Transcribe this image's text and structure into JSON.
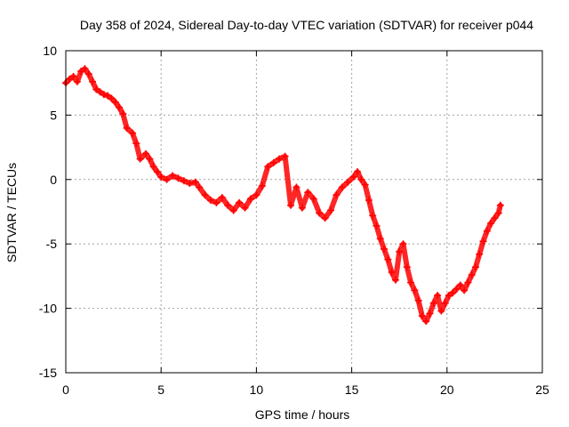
{
  "chart_data": {
    "type": "scatter",
    "title": "Day 358 of 2024, Sidereal Day-to-day VTEC variation (SDTVAR) for receiver p044",
    "xlabel": "GPS time / hours",
    "ylabel": "SDTVAR / TECUs",
    "xlim": [
      0,
      25
    ],
    "ylim": [
      -15,
      10
    ],
    "xticks": [
      0,
      5,
      10,
      15,
      20,
      25
    ],
    "yticks": [
      -15,
      -10,
      -5,
      0,
      5,
      10
    ],
    "grid": true,
    "marker": "+",
    "color": "#ff0000",
    "series": [
      {
        "name": "p044",
        "x": [
          0.0,
          0.2,
          0.4,
          0.6,
          0.8,
          1.0,
          1.2,
          1.4,
          1.6,
          1.8,
          2.0,
          2.2,
          2.4,
          2.6,
          2.8,
          3.0,
          3.2,
          3.5,
          3.7,
          3.9,
          4.2,
          4.4,
          4.6,
          4.8,
          5.0,
          5.3,
          5.6,
          5.9,
          6.2,
          6.5,
          6.8,
          7.0,
          7.3,
          7.6,
          7.9,
          8.2,
          8.5,
          8.8,
          9.1,
          9.4,
          9.7,
          10.0,
          10.3,
          10.6,
          10.9,
          11.2,
          11.5,
          11.8,
          12.1,
          12.4,
          12.7,
          13.0,
          13.3,
          13.6,
          13.9,
          14.2,
          14.5,
          14.8,
          15.1,
          15.3,
          15.5,
          15.7,
          15.9,
          16.1,
          16.3,
          16.5,
          16.7,
          16.9,
          17.1,
          17.3,
          17.5,
          17.7,
          17.9,
          18.1,
          18.3,
          18.5,
          18.7,
          18.9,
          19.1,
          19.3,
          19.5,
          19.7,
          19.9,
          20.1,
          20.3,
          20.5,
          20.7,
          20.9,
          21.1,
          21.3,
          21.5,
          21.7,
          21.9,
          22.1,
          22.3,
          22.5,
          22.7,
          22.8
        ],
        "y": [
          7.5,
          7.8,
          8.0,
          7.6,
          8.4,
          8.6,
          8.2,
          7.6,
          7.0,
          6.8,
          6.6,
          6.5,
          6.3,
          6.0,
          5.6,
          5.1,
          4.0,
          3.6,
          2.8,
          1.6,
          2.0,
          1.6,
          1.0,
          0.6,
          0.2,
          0.0,
          0.3,
          0.1,
          -0.1,
          -0.3,
          -0.2,
          -0.6,
          -1.2,
          -1.6,
          -1.8,
          -1.4,
          -2.0,
          -2.4,
          -1.8,
          -2.2,
          -1.5,
          -1.2,
          -0.5,
          1.0,
          1.3,
          1.6,
          1.8,
          -2.0,
          -0.6,
          -2.2,
          -1.0,
          -1.5,
          -2.6,
          -3.0,
          -2.4,
          -1.2,
          -0.6,
          -0.2,
          0.2,
          0.6,
          0.0,
          -0.4,
          -1.6,
          -2.8,
          -3.6,
          -4.6,
          -5.4,
          -6.2,
          -7.2,
          -7.8,
          -5.6,
          -5.0,
          -6.8,
          -8.0,
          -8.6,
          -9.4,
          -10.6,
          -11.0,
          -10.4,
          -9.6,
          -9.0,
          -10.2,
          -9.6,
          -9.0,
          -8.8,
          -8.5,
          -8.2,
          -8.6,
          -8.0,
          -7.4,
          -6.8,
          -5.8,
          -4.8,
          -4.0,
          -3.4,
          -3.0,
          -2.6,
          -2.0
        ]
      }
    ]
  }
}
